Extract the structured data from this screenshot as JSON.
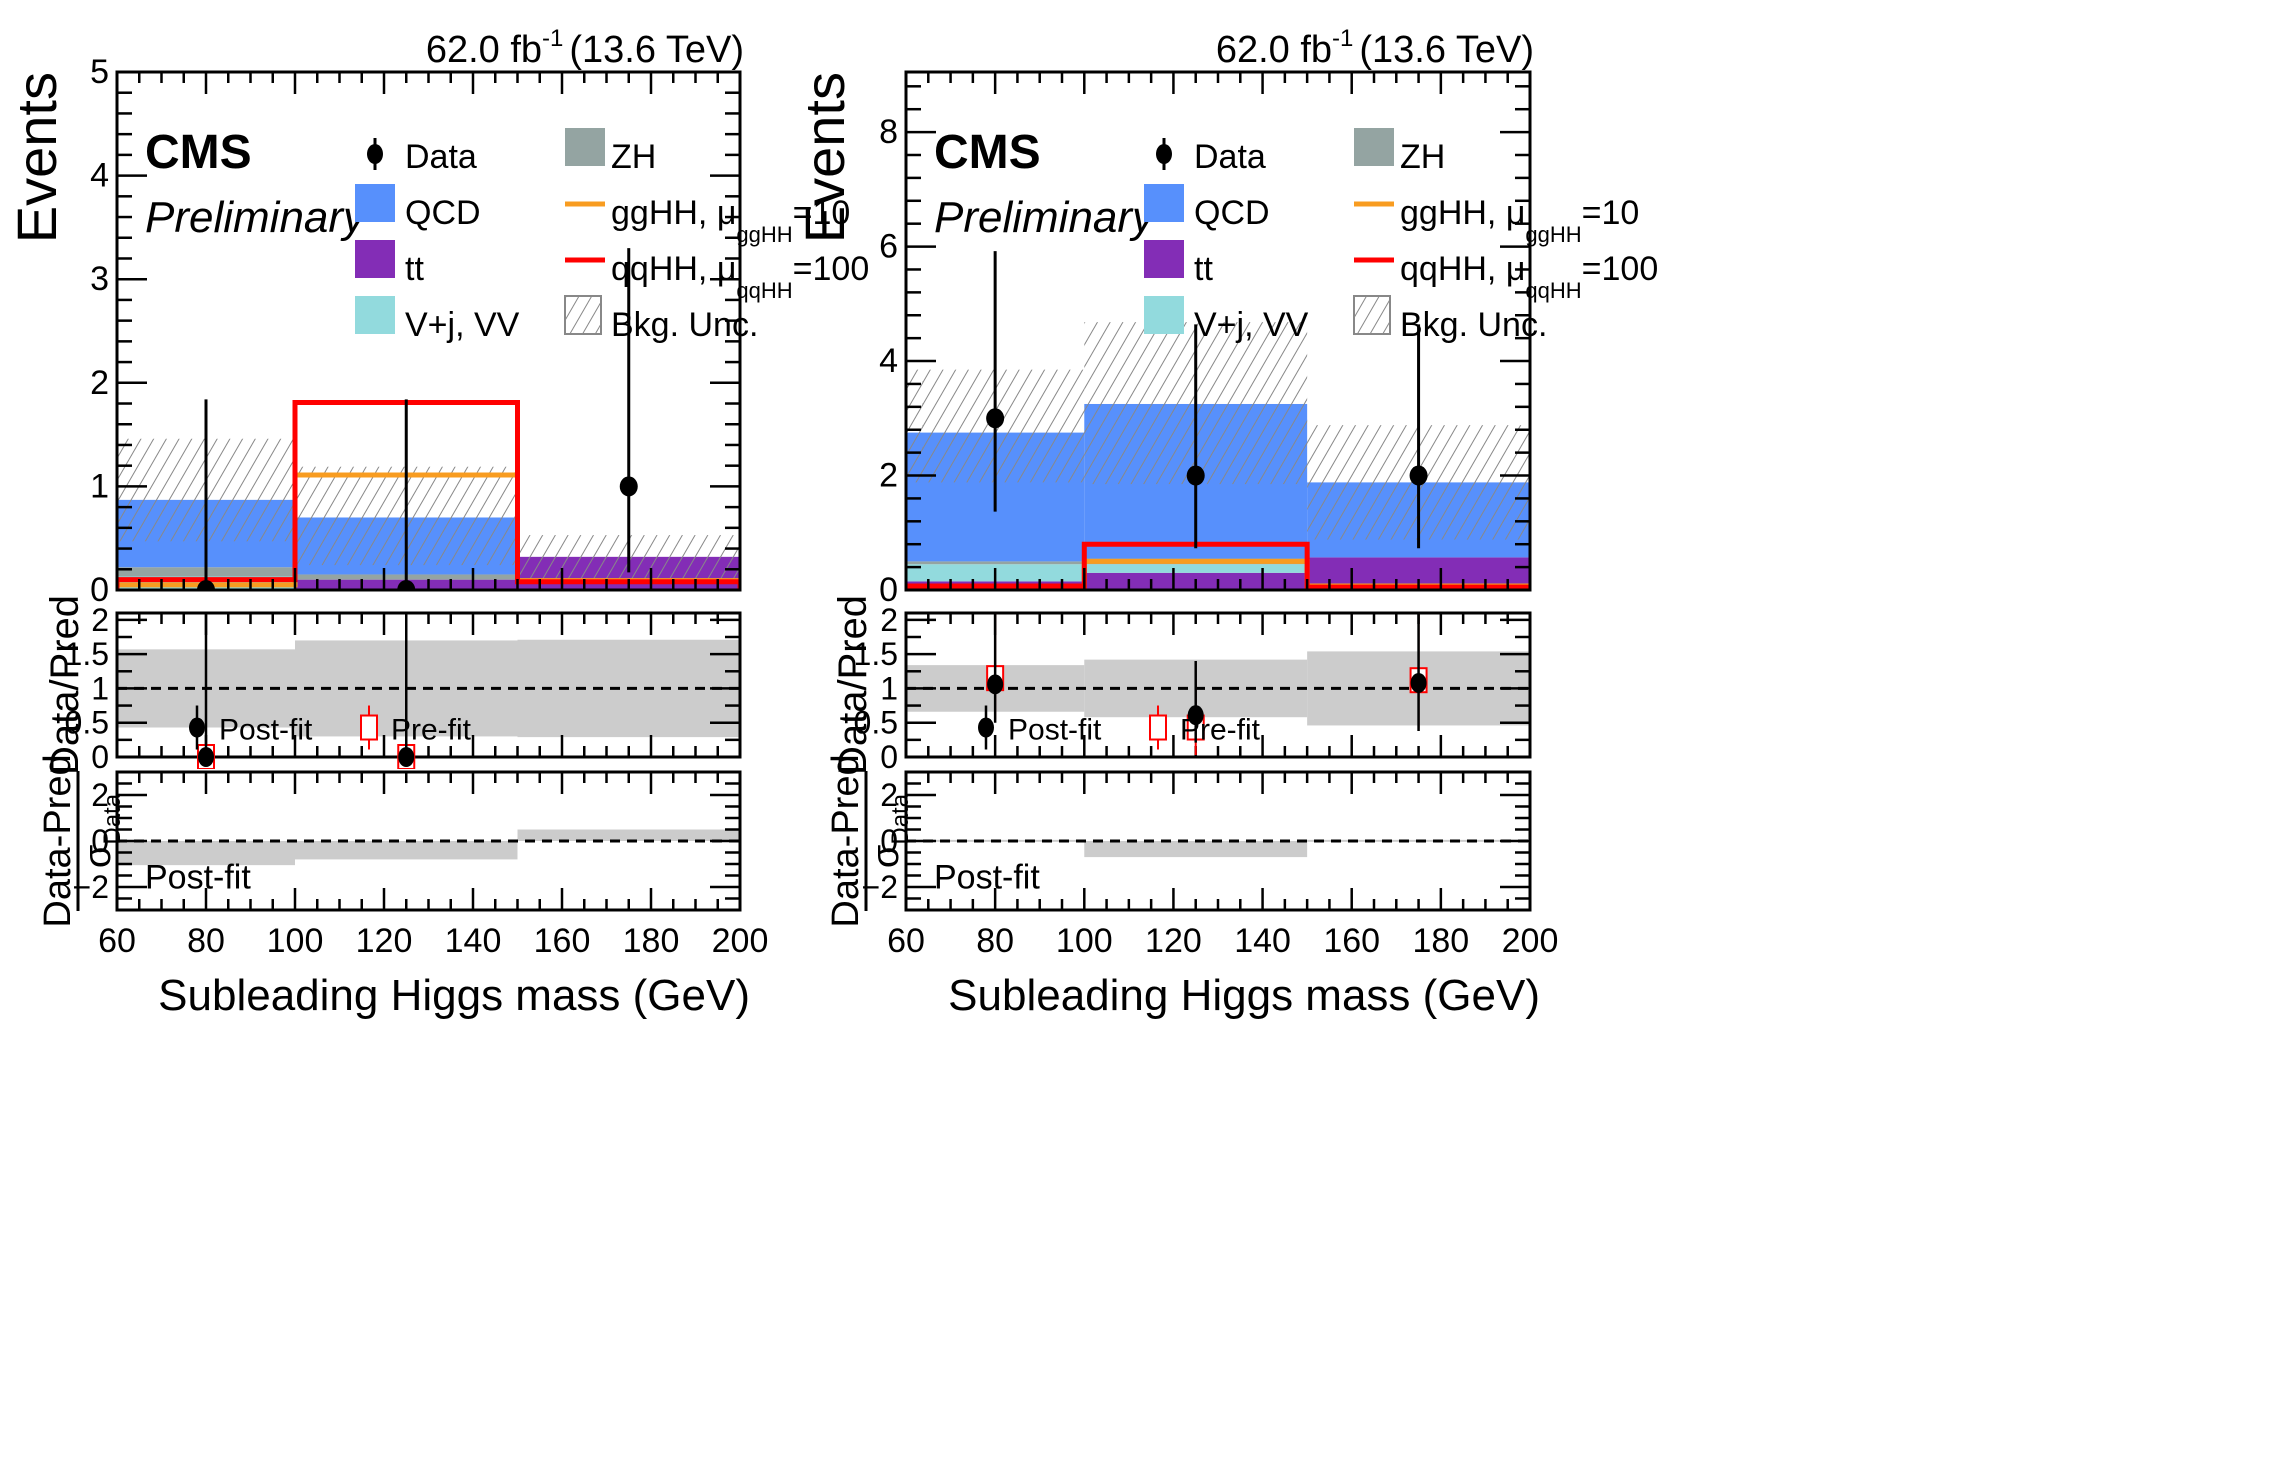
{
  "chart_data": [
    {
      "type": "bar",
      "name": "left",
      "lumi_label": "62.0 fb",
      "lumi_sup": "-1",
      "energy_label": "(13.6 TeV)",
      "experiment": "CMS",
      "status": "Preliminary",
      "xlabel": "Subleading Higgs mass (GeV)",
      "xlim": [
        60,
        200
      ],
      "x_ticks": [
        60,
        80,
        100,
        120,
        140,
        160,
        180,
        200
      ],
      "bin_edges": [
        60,
        100,
        150,
        200
      ],
      "main": {
        "ylabel": "Events",
        "ylim": [
          0,
          5
        ],
        "y_ticks": [
          0,
          1,
          2,
          3,
          4,
          5
        ],
        "stack": [
          {
            "name": "tt",
            "values": [
              0.01,
              0.1,
              0.32
            ]
          },
          {
            "name": "V+j, VV",
            "values": [
              0.12,
              0.0,
              0.0
            ]
          },
          {
            "name": "ZH",
            "values": [
              0.09,
              0.05,
              0.0
            ]
          },
          {
            "name": "QCD",
            "values": [
              0.65,
              0.55,
              0.0
            ]
          }
        ],
        "unc_band": {
          "lo": [
            0.47,
            0.24,
            0.1
          ],
          "hi": [
            1.46,
            1.19,
            0.53
          ]
        },
        "signals": [
          {
            "name": "ggHH",
            "values": [
              0.05,
              1.11,
              0.09
            ]
          },
          {
            "name": "qqHH",
            "values": [
              0.1,
              1.81,
              0.08
            ]
          }
        ],
        "data": {
          "x": [
            80,
            125,
            175
          ],
          "y": [
            0,
            0,
            1
          ],
          "err_lo": [
            0,
            0,
            0.83
          ],
          "err_hi": [
            1.84,
            1.84,
            2.3
          ]
        }
      },
      "ratio": {
        "ylabel": "Data/Pred",
        "ylim": [
          0,
          2.1
        ],
        "y_ticks": [
          0,
          0.5,
          1,
          1.5,
          2
        ],
        "band": {
          "lo": [
            0.43,
            0.3,
            0.29
          ],
          "hi": [
            1.57,
            1.7,
            1.71
          ]
        },
        "postfit": {
          "x": [
            80,
            125
          ],
          "y": [
            0,
            0
          ],
          "err_lo": [
            0,
            0
          ],
          "err_hi": [
            2.2,
            2.2
          ]
        },
        "prefit": {
          "x": [
            80,
            125
          ],
          "y": [
            0,
            0
          ],
          "err_lo": [
            0,
            0
          ],
          "err_hi": [
            2.2,
            2.2
          ]
        },
        "legend_postfit": "Post-fit",
        "legend_prefit": "Pre-fit"
      },
      "pull": {
        "ylabel_num": "Data-Pred",
        "ylabel_den": "σ",
        "ylabel_den_sub": "Data",
        "ylim": [
          -3,
          3
        ],
        "y_ticks": [
          -2,
          0,
          2
        ],
        "values": [
          -1.05,
          -0.8,
          0.5
        ],
        "label": "Post-fit"
      }
    },
    {
      "type": "bar",
      "name": "right",
      "lumi_label": "62.0 fb",
      "lumi_sup": "-1",
      "energy_label": "(13.6 TeV)",
      "experiment": "CMS",
      "status": "Preliminary",
      "xlabel": "Subleading Higgs mass (GeV)",
      "xlim": [
        60,
        200
      ],
      "x_ticks": [
        60,
        80,
        100,
        120,
        140,
        160,
        180,
        200
      ],
      "bin_edges": [
        60,
        100,
        150,
        200
      ],
      "main": {
        "ylabel": "Events",
        "ylim": [
          0,
          9.05
        ],
        "y_ticks": [
          0,
          2,
          4,
          6,
          8
        ],
        "stack": [
          {
            "name": "tt",
            "values": [
              0.15,
              0.3,
              0.57
            ]
          },
          {
            "name": "V+j, VV",
            "values": [
              0.3,
              0.15,
              0.0
            ]
          },
          {
            "name": "ZH",
            "values": [
              0.05,
              0.1,
              0.0
            ]
          },
          {
            "name": "QCD",
            "values": [
              2.25,
              2.7,
              1.31
            ]
          }
        ],
        "unc_band": {
          "lo": [
            1.88,
            1.85,
            0.88
          ],
          "hi": [
            3.85,
            4.68,
            2.88
          ]
        },
        "signals": [
          {
            "name": "ggHH",
            "values": [
              0.03,
              0.5,
              0.07
            ]
          },
          {
            "name": "qqHH",
            "values": [
              0.07,
              0.8,
              0.05
            ]
          }
        ],
        "data": {
          "x": [
            80,
            125,
            175
          ],
          "y": [
            3,
            2,
            2
          ],
          "err_lo": [
            1.63,
            1.27,
            1.27
          ],
          "err_hi": [
            2.92,
            2.64,
            2.64
          ]
        }
      },
      "ratio": {
        "ylabel": "Data/Pred",
        "ylim": [
          0,
          2.1
        ],
        "y_ticks": [
          0,
          0.5,
          1,
          1.5,
          2
        ],
        "band": {
          "lo": [
            0.66,
            0.58,
            0.46
          ],
          "hi": [
            1.34,
            1.42,
            1.54
          ]
        },
        "postfit": {
          "x": [
            80,
            125,
            175
          ],
          "y": [
            1.06,
            0.61,
            1.08
          ],
          "err_lo": [
            0.56,
            0.4,
            0.7
          ],
          "err_hi": [
            1.1,
            0.79,
            1.1
          ]
        },
        "prefit": {
          "x": [
            80,
            125,
            175
          ],
          "y": [
            1.15,
            0.43,
            1.12
          ],
          "err_lo": [
            0.6,
            0.4,
            0.7
          ],
          "err_hi": [
            1.0,
            0.7,
            1.0
          ]
        },
        "legend_postfit": "Post-fit",
        "legend_prefit": "Pre-fit"
      },
      "pull": {
        "ylabel_num": "Data-Pred",
        "ylabel_den": "σ",
        "ylabel_den_sub": "Data",
        "ylim": [
          -3,
          3
        ],
        "y_ticks": [
          -2,
          0,
          2
        ],
        "values": [
          0.05,
          -0.7,
          0.05
        ],
        "label": "Post-fit"
      }
    }
  ],
  "legend": {
    "data": "Data",
    "zh": "ZH",
    "qcd": "QCD",
    "gghh": "ggHH, μ",
    "gghh_sub": "ggHH",
    "gghh_val": "=10",
    "tt": "tt",
    "qqhh": "qqHH, μ",
    "qqhh_sub": "qqHH",
    "qqhh_val": "=100",
    "vjj": "V+j, VV",
    "unc": "Bkg. Unc."
  },
  "colors": {
    "qcd": "#5790fc",
    "tt": "#832db6",
    "vjj": "#92dadd",
    "zh": "#94a4a2",
    "gghh": "#f89c20",
    "qqhh": "#ff0000",
    "band": "#cccccc",
    "hatch": "#888888"
  }
}
